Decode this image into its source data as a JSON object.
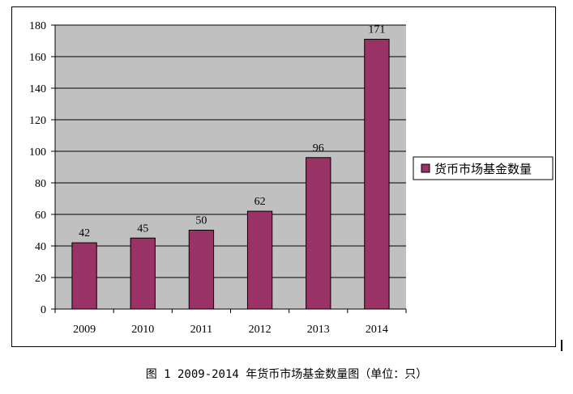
{
  "chart_data": {
    "type": "bar",
    "categories": [
      "2009",
      "2010",
      "2011",
      "2012",
      "2013",
      "2014"
    ],
    "series": [
      {
        "name": "货币市场基金数量",
        "values": [
          42,
          45,
          50,
          62,
          96,
          171
        ]
      }
    ],
    "data_labels": [
      "42",
      "45",
      "50",
      "62",
      "96",
      "171"
    ],
    "ylim": [
      0,
      180
    ],
    "yticks": [
      0,
      20,
      40,
      60,
      80,
      100,
      120,
      140,
      160,
      180
    ],
    "yticks_labels": [
      "0",
      "20",
      "40",
      "60",
      "80",
      "100",
      "120",
      "140",
      "160",
      "180"
    ],
    "grid": true,
    "legend_position": "right",
    "colors": {
      "bar": "#993366",
      "plot_background": "#c0c0c0",
      "gridline": "#000000"
    }
  },
  "caption": "图 1  2009-2014 年货币市场基金数量图（单位：只）"
}
